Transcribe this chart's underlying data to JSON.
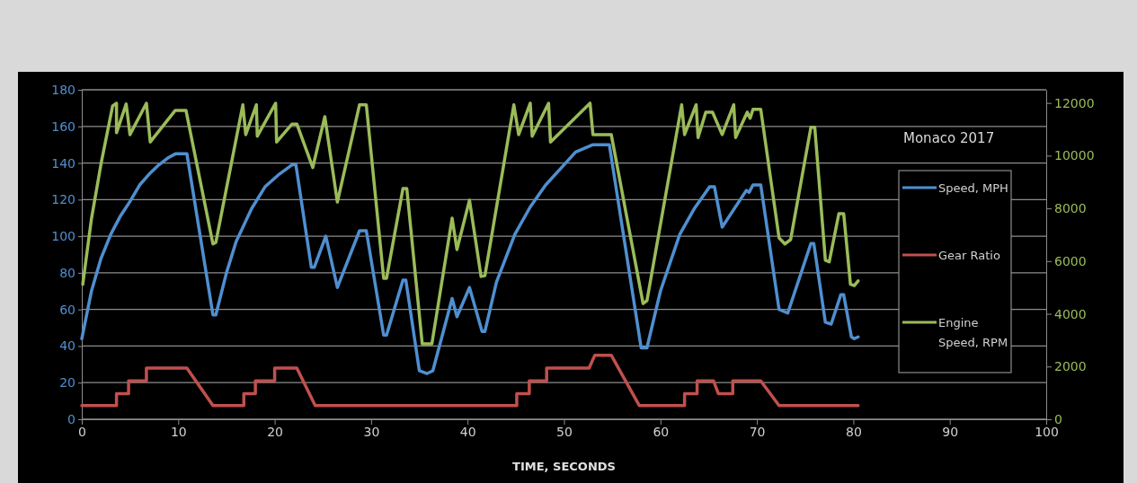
{
  "chart_data": {
    "type": "line",
    "xlabel": "TIME,  SECONDS",
    "annotations": [
      "Monaco 2017"
    ],
    "xlim": [
      0,
      100
    ],
    "xticks": [
      0,
      10,
      20,
      30,
      40,
      50,
      60,
      70,
      80,
      90,
      100
    ],
    "ylim": [
      0,
      180
    ],
    "yticks": [
      0,
      20,
      40,
      60,
      80,
      100,
      120,
      140,
      160,
      180
    ],
    "y2lim": [
      0,
      12500
    ],
    "y2ticks": [
      0,
      2000,
      4000,
      6000,
      8000,
      10000,
      12000
    ],
    "grid": "y",
    "legend": "right",
    "marker": "none",
    "line_style": "solid",
    "series": [
      {
        "name": "Speed, MPH",
        "color": "#4f8fd0",
        "x": [
          0,
          1,
          2,
          3,
          4,
          5,
          6,
          7,
          8,
          9,
          9.7,
          10.9,
          13.6,
          13.9,
          15,
          16,
          17.6,
          19,
          20.5,
          21.8,
          22.2,
          23.8,
          24.1,
          25.3,
          26.5,
          28.8,
          29.5,
          31.3,
          31.6,
          33.3,
          33.6,
          35,
          35.8,
          36.4,
          38.4,
          38.9,
          40.2,
          41.5,
          41.8,
          43,
          44.9,
          46.5,
          48.1,
          50,
          51.2,
          53,
          54.7,
          58,
          58.6,
          60,
          62,
          63.5,
          65.1,
          65.6,
          66.4,
          68.9,
          69.2,
          69.6,
          70.4,
          72.3,
          73.2,
          75.6,
          75.9,
          77.1,
          77.7,
          78.7,
          79,
          79.8,
          80.1,
          80.5
        ],
        "values": [
          44,
          70,
          88,
          101,
          111,
          119,
          128,
          134,
          139,
          143,
          145,
          145,
          57,
          57,
          80,
          97,
          115,
          127,
          134,
          139,
          139,
          83,
          83,
          100,
          72,
          103,
          103,
          46,
          46,
          76,
          76,
          26.5,
          25,
          26.5,
          66,
          56,
          72,
          48,
          48,
          75,
          101,
          116,
          128,
          139,
          146,
          150,
          150,
          39,
          39,
          70,
          101,
          115,
          127,
          127,
          105,
          125,
          124,
          128,
          128,
          60,
          58,
          96,
          96,
          53,
          52,
          68,
          68,
          45,
          44,
          45
        ]
      },
      {
        "name": "Gear Ratio",
        "color": "#c0504d",
        "x": [
          0,
          3.6,
          3.6,
          4.85,
          4.85,
          6.7,
          6.7,
          10.9,
          13.6,
          16.8,
          16.8,
          18,
          18,
          20,
          20,
          22.3,
          24.2,
          45.1,
          45.1,
          46.4,
          46.4,
          48.2,
          48.2,
          52.6,
          53.2,
          54.9,
          57.8,
          62.5,
          62.5,
          63.8,
          63.8,
          65.5,
          66,
          67.5,
          67.5,
          70.4,
          72.3,
          80.5
        ],
        "values": [
          7.5,
          7.5,
          14,
          14,
          21,
          21,
          28,
          28,
          7.5,
          7.5,
          14,
          14,
          21,
          21,
          28,
          28,
          7.5,
          7.5,
          14,
          14,
          21,
          21,
          28,
          28,
          35,
          35,
          7.5,
          7.5,
          14,
          14,
          21,
          21,
          14,
          14,
          21,
          21,
          7.5,
          7.5
        ]
      },
      {
        "name": "Engine Speed, RPM",
        "color": "#9bbb59",
        "axis": "y2",
        "x": [
          0.1,
          1,
          2,
          3.2,
          3.6,
          3.6,
          4.6,
          5,
          6.7,
          7.1,
          9.7,
          10.8,
          13.6,
          13.9,
          16.7,
          17,
          18.1,
          18.2,
          20.1,
          20.2,
          21.8,
          22.3,
          23.95,
          25.2,
          26.5,
          28.8,
          29.5,
          31.3,
          31.6,
          33.3,
          33.7,
          35.3,
          36.3,
          38.4,
          38.9,
          40.2,
          41.4,
          41.8,
          44.8,
          45.3,
          46.5,
          46.7,
          48.4,
          48.6,
          52.7,
          53,
          54.9,
          58.2,
          58.6,
          62.2,
          62.5,
          63.7,
          63.9,
          64.7,
          65.4,
          66.4,
          67.6,
          67.8,
          69,
          69.3,
          69.6,
          70.4,
          72.3,
          72.9,
          73.5,
          75.6,
          76,
          77.1,
          77.5,
          78.5,
          79,
          79.7,
          80.1,
          80.5
        ],
        "values": [
          5120,
          7600,
          9700,
          11890,
          11990,
          10870,
          11960,
          10800,
          11990,
          10520,
          11720,
          11720,
          6650,
          6710,
          11930,
          10800,
          11930,
          10740,
          11990,
          10520,
          11200,
          11200,
          9550,
          11480,
          8240,
          11930,
          11930,
          5350,
          5350,
          8750,
          8750,
          2860,
          2860,
          7630,
          6440,
          8310,
          5420,
          5450,
          11930,
          10800,
          11990,
          10740,
          11990,
          10520,
          11990,
          10800,
          10800,
          4390,
          4500,
          11930,
          10800,
          11930,
          10690,
          11650,
          11650,
          10800,
          11930,
          10690,
          11650,
          11420,
          11760,
          11760,
          6880,
          6650,
          6820,
          11080,
          11080,
          6030,
          5970,
          7800,
          7800,
          5120,
          5070,
          5250
        ]
      }
    ]
  }
}
